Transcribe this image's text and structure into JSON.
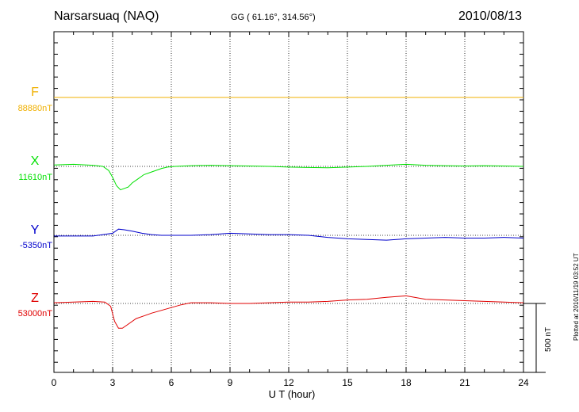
{
  "header": {
    "station": "Narsarsuaq (NAQ)",
    "coordinates": "GG ( 61.16°, 314.56°)",
    "date": "2010/08/13"
  },
  "side_note": "Plotted at 2010/11/19 03:52 UT",
  "scale_bar": {
    "label": "500 nT",
    "value_nT": 500
  },
  "components": [
    {
      "name": "F",
      "baseline": "88880nT",
      "color": "#f0b000"
    },
    {
      "name": "X",
      "baseline": "11610nT",
      "color": "#00e000"
    },
    {
      "name": "Y",
      "baseline": "-5350nT",
      "color": "#0000cc"
    },
    {
      "name": "Z",
      "baseline": "53000nT",
      "color": "#e00000"
    }
  ],
  "chart_data": {
    "type": "line",
    "xlabel": "U T (hour)",
    "xlim": [
      0,
      24
    ],
    "xticks": [
      "0",
      "3",
      "6",
      "9",
      "12",
      "15",
      "18",
      "21",
      "24"
    ],
    "y_unit": "nT (offset from baseline)",
    "series": [
      {
        "name": "F",
        "baseline_nT": 88880,
        "x": [
          0,
          24
        ],
        "y": [
          0,
          0
        ]
      },
      {
        "name": "X",
        "baseline_nT": 11610,
        "x": [
          0,
          1,
          2,
          2.5,
          2.8,
          3.0,
          3.2,
          3.4,
          3.6,
          3.8,
          4.0,
          4.3,
          4.6,
          5.0,
          5.5,
          5.8,
          6.2,
          7,
          8,
          9,
          10,
          11,
          12,
          13,
          14,
          15,
          16,
          17,
          18,
          19,
          20,
          21,
          22,
          23,
          24
        ],
        "y": [
          10,
          15,
          8,
          0,
          -30,
          -80,
          -140,
          -170,
          -160,
          -150,
          -120,
          -90,
          -60,
          -40,
          -15,
          -5,
          0,
          5,
          8,
          5,
          3,
          0,
          -5,
          -8,
          -10,
          -5,
          0,
          8,
          15,
          8,
          5,
          3,
          5,
          3,
          0
        ]
      },
      {
        "name": "Y",
        "baseline_nT": -5350,
        "x": [
          0,
          1,
          2,
          2.5,
          3.0,
          3.3,
          3.6,
          4.0,
          4.5,
          5.0,
          5.5,
          6,
          7,
          8,
          9,
          10,
          11,
          12,
          13,
          14,
          15,
          16,
          17,
          18,
          19,
          20,
          21,
          22,
          23,
          24
        ],
        "y": [
          -5,
          -5,
          -5,
          5,
          15,
          45,
          40,
          30,
          15,
          5,
          0,
          0,
          0,
          5,
          15,
          10,
          5,
          5,
          0,
          -15,
          -25,
          -30,
          -35,
          -25,
          -20,
          -15,
          -20,
          -20,
          -15,
          -20
        ]
      },
      {
        "name": "Z",
        "baseline_nT": 53000,
        "x": [
          0,
          1,
          2,
          2.6,
          2.9,
          3.1,
          3.3,
          3.5,
          3.8,
          4.2,
          4.6,
          5.0,
          5.5,
          6.0,
          6.5,
          7,
          8,
          9,
          10,
          11,
          12,
          13,
          14,
          15,
          16,
          17,
          18,
          19,
          20,
          21,
          22,
          23,
          24
        ],
        "y": [
          5,
          10,
          15,
          10,
          -20,
          -130,
          -180,
          -180,
          -150,
          -110,
          -90,
          -70,
          -50,
          -30,
          -10,
          5,
          5,
          0,
          0,
          5,
          10,
          10,
          15,
          25,
          30,
          45,
          55,
          30,
          25,
          20,
          15,
          10,
          5
        ]
      }
    ]
  }
}
